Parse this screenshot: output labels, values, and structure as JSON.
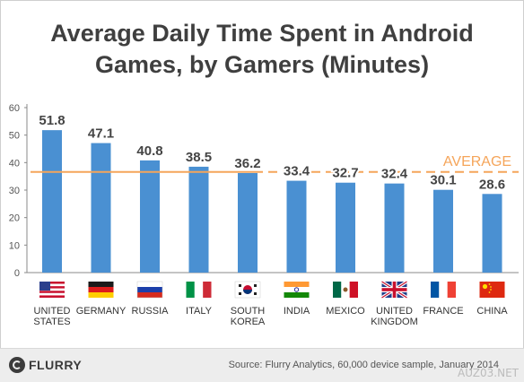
{
  "chart_data": {
    "type": "bar",
    "title_line1": "Average Daily Time Spent in Android",
    "title_line2": "Games, by Gamers (Minutes)",
    "categories": [
      [
        "UNITED",
        "STATES"
      ],
      [
        "GERMANY"
      ],
      [
        "RUSSIA"
      ],
      [
        "ITALY"
      ],
      [
        "SOUTH",
        "KOREA"
      ],
      [
        "INDIA"
      ],
      [
        "MEXICO"
      ],
      [
        "UNITED",
        "KINGDOM"
      ],
      [
        "FRANCE"
      ],
      [
        "CHINA"
      ]
    ],
    "flags": [
      "us",
      "de",
      "ru",
      "it",
      "kr",
      "in",
      "mx",
      "gb",
      "fr",
      "cn"
    ],
    "values": [
      51.8,
      47.1,
      40.8,
      38.5,
      36.2,
      33.4,
      32.7,
      32.4,
      30.1,
      28.6
    ],
    "value_labels": [
      "51.8",
      "47.1",
      "40.8",
      "38.5",
      "36.2",
      "33.4",
      "32.7",
      "32.4",
      "30.1",
      "28.6"
    ],
    "average_label": "AVERAGE",
    "average_value": 36.6,
    "yticks": [
      0,
      10,
      20,
      30,
      40,
      50,
      60
    ],
    "ylim": [
      0,
      60
    ],
    "grid": false,
    "bar_color": "#4a90d2",
    "average_color": "#f5a55a"
  },
  "footer": {
    "logo_text": "FLURRY",
    "source": "Source: Flurry Analytics, 60,000 device sample, January 2014",
    "watermark": "AUZ03.NET"
  }
}
